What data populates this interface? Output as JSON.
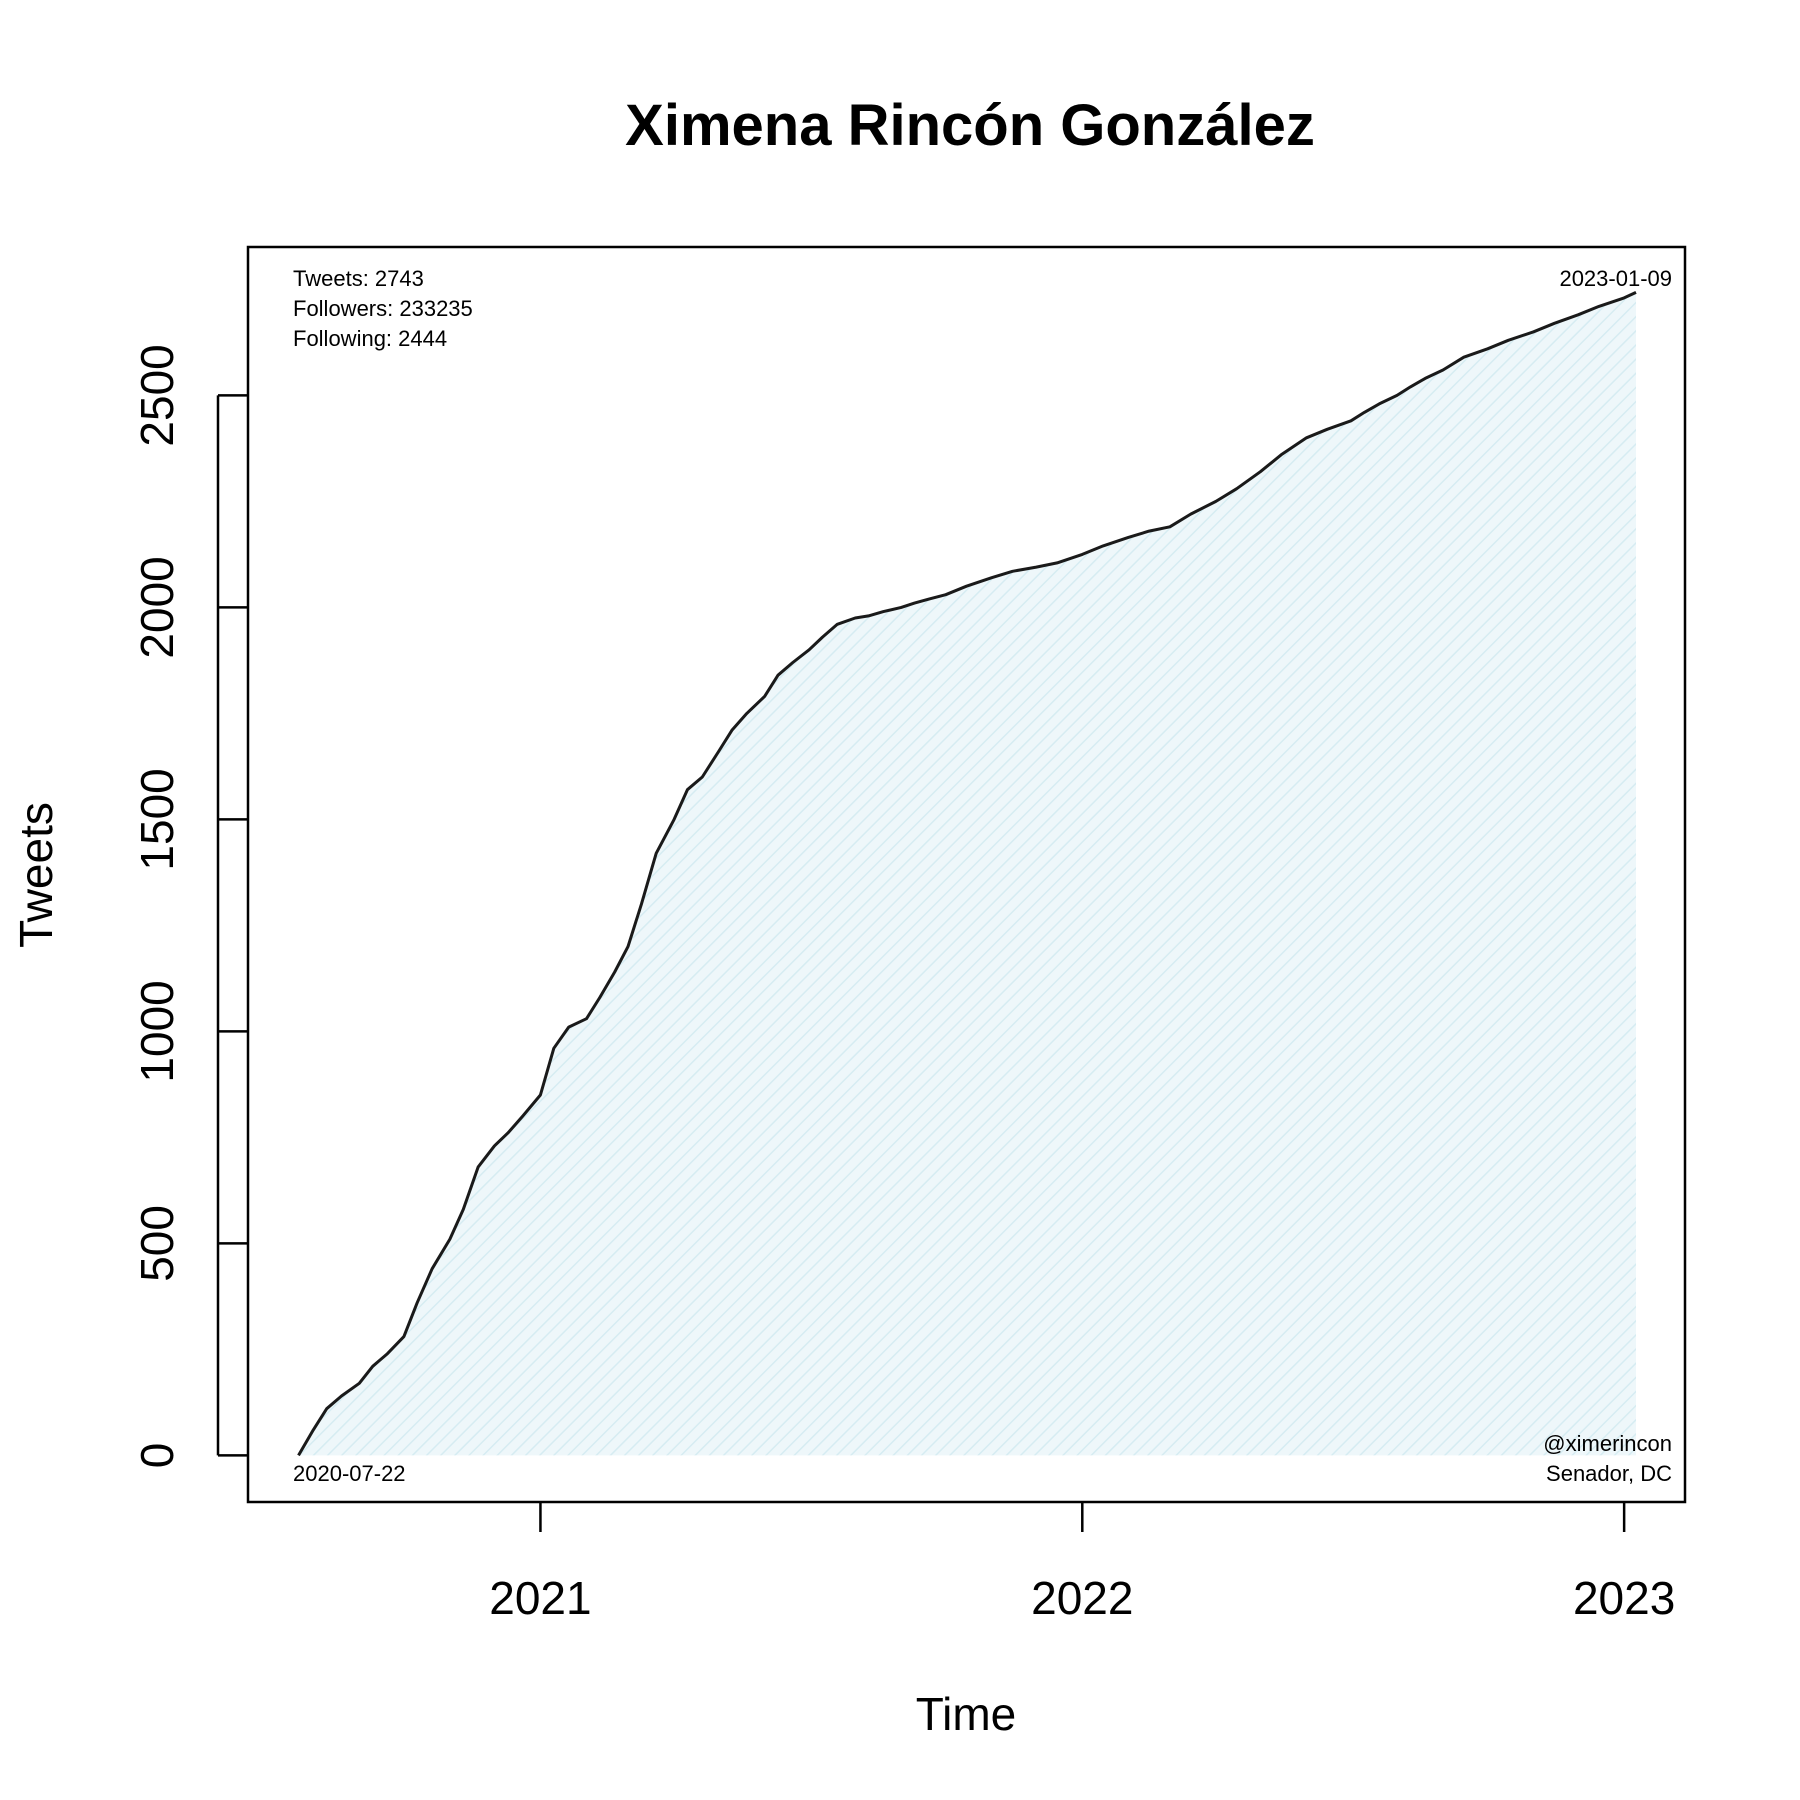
{
  "chart_data": {
    "type": "area",
    "title": "Ximena Rincón González",
    "xlabel": "Time",
    "ylabel": "Tweets",
    "x_ticks": [
      "2021",
      "2022",
      "2023"
    ],
    "y_ticks": [
      0,
      500,
      1000,
      1500,
      2000,
      2500
    ],
    "xlim": [
      "2020-06-18",
      "2023-02-11"
    ],
    "ylim": [
      -110,
      2850
    ],
    "grid": false,
    "colors": {
      "line": "#1a1a1a",
      "fill": "#eef7fa",
      "hatch": "#d6ecf2"
    },
    "annotations": {
      "tweets": "Tweets: 2743",
      "followers": "Followers: 233235",
      "following": "Following: 2444",
      "start_date": "2020-07-22",
      "end_date": "2023-01-09",
      "handle": "@ximerincon",
      "role": "Senador, DC"
    },
    "series": [
      {
        "x": [
          "2020-07-22",
          "2020-08-01",
          "2020-08-10",
          "2020-08-20",
          "2020-09-01",
          "2020-09-10",
          "2020-09-20",
          "2020-10-01",
          "2020-10-10",
          "2020-10-20",
          "2020-11-01",
          "2020-11-10",
          "2020-11-20",
          "2020-12-01",
          "2020-12-10",
          "2020-12-20",
          "2021-01-01",
          "2021-01-10",
          "2021-01-20",
          "2021-02-01",
          "2021-02-10",
          "2021-02-20",
          "2021-03-01",
          "2021-03-10",
          "2021-03-20",
          "2021-04-01",
          "2021-04-10",
          "2021-04-20",
          "2021-05-01",
          "2021-05-10",
          "2021-05-20",
          "2021-06-01",
          "2021-06-10",
          "2021-06-20",
          "2021-07-01",
          "2021-07-10",
          "2021-07-20",
          "2021-08-01",
          "2021-08-10",
          "2021-08-20",
          "2021-09-01",
          "2021-09-10",
          "2021-09-20",
          "2021-10-01",
          "2021-10-15",
          "2021-11-01",
          "2021-11-15",
          "2021-12-01",
          "2021-12-15",
          "2022-01-01",
          "2022-01-15",
          "2022-02-01",
          "2022-02-15",
          "2022-03-01",
          "2022-03-15",
          "2022-04-01",
          "2022-04-15",
          "2022-05-01",
          "2022-05-15",
          "2022-06-01",
          "2022-06-15",
          "2022-07-01",
          "2022-07-10",
          "2022-07-20",
          "2022-08-01",
          "2022-08-10",
          "2022-08-20",
          "2022-09-01",
          "2022-09-15",
          "2022-10-01",
          "2022-10-15",
          "2022-11-01",
          "2022-11-15",
          "2022-12-01",
          "2022-12-15",
          "2023-01-01",
          "2023-01-09"
        ],
        "values": [
          0,
          60,
          110,
          140,
          170,
          210,
          240,
          280,
          360,
          440,
          510,
          580,
          680,
          730,
          760,
          800,
          850,
          960,
          1010,
          1030,
          1080,
          1140,
          1200,
          1300,
          1420,
          1500,
          1570,
          1600,
          1660,
          1710,
          1750,
          1790,
          1840,
          1870,
          1900,
          1930,
          1960,
          1975,
          1980,
          1990,
          2000,
          2010,
          2020,
          2030,
          2050,
          2070,
          2085,
          2095,
          2105,
          2125,
          2145,
          2165,
          2180,
          2190,
          2220,
          2250,
          2280,
          2320,
          2360,
          2400,
          2420,
          2440,
          2460,
          2480,
          2500,
          2520,
          2540,
          2560,
          2590,
          2610,
          2630,
          2650,
          2670,
          2690,
          2710,
          2730,
          2743
        ]
      }
    ]
  }
}
